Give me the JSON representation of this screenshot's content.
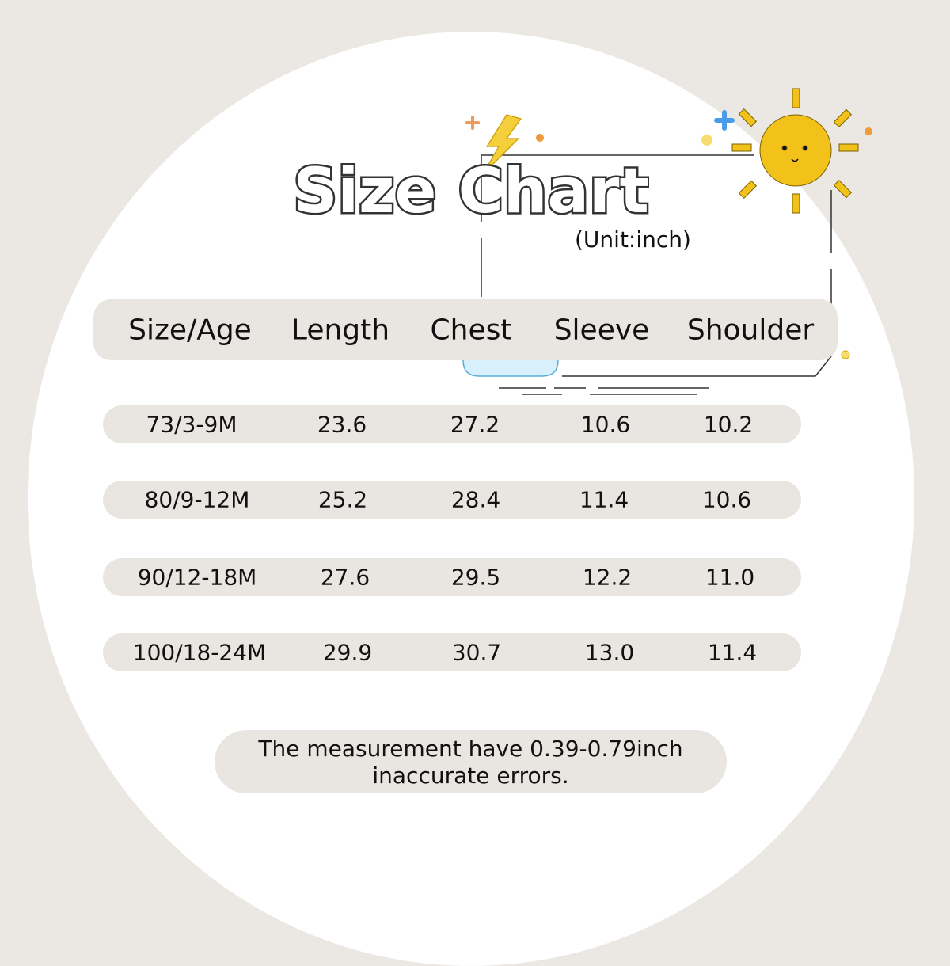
{
  "title": "Size Chart",
  "unit": "(Unit:inch)",
  "headers": [
    "Size/Age",
    "Length",
    "Chest",
    "Sleeve",
    "Shoulder"
  ],
  "rows": [
    [
      "73/3-9M",
      "23.6",
      "27.2",
      "10.6",
      "10.2"
    ],
    [
      "80/9-12M",
      "25.2",
      "28.4",
      "11.4",
      "10.6"
    ],
    [
      "90/12-18M",
      "27.6",
      "29.5",
      "12.2",
      "11.0"
    ],
    [
      "100/18-24M",
      "29.9",
      "30.7",
      "13.0",
      "11.4"
    ]
  ],
  "note": {
    "line1": "The measurement have 0.39-0.79inch",
    "line2": "inaccurate errors."
  },
  "colors": {
    "background": "#ebe8e3",
    "row_fill": "#e9e6e1",
    "sun": "#f2c21b"
  }
}
